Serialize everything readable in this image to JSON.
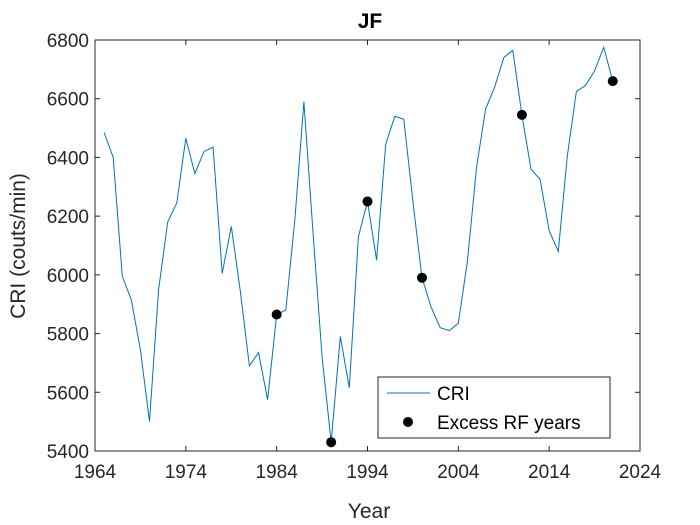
{
  "colors": {
    "line": "#0072BD",
    "marker": "#000000",
    "axis": "#262626",
    "background": "#ffffff"
  },
  "chart_data": {
    "type": "line",
    "title": "JF",
    "xlabel": "Year",
    "ylabel": "CRI (couts/min)",
    "xlim": [
      1964,
      2024
    ],
    "ylim": [
      5400,
      6800
    ],
    "xticks": [
      1964,
      1974,
      1984,
      1994,
      2004,
      2014,
      2024
    ],
    "yticks": [
      5400,
      5600,
      5800,
      6000,
      6200,
      6400,
      6600,
      6800
    ],
    "grid": false,
    "legend_position": "bottom-right",
    "series": [
      {
        "name": "CRI",
        "style": "line",
        "x": [
          1965,
          1966,
          1967,
          1968,
          1969,
          1970,
          1971,
          1972,
          1973,
          1974,
          1975,
          1976,
          1977,
          1978,
          1979,
          1980,
          1981,
          1982,
          1983,
          1984,
          1985,
          1986,
          1987,
          1988,
          1989,
          1990,
          1991,
          1992,
          1993,
          1994,
          1995,
          1996,
          1997,
          1998,
          1999,
          2000,
          2001,
          2002,
          2003,
          2004,
          2005,
          2006,
          2007,
          2008,
          2009,
          2010,
          2011,
          2012,
          2013,
          2014,
          2015,
          2016,
          2017,
          2018,
          2019,
          2020,
          2021
        ],
        "values": [
          6485,
          6400,
          5995,
          5915,
          5745,
          5500,
          5950,
          6180,
          6245,
          6465,
          6345,
          6420,
          6435,
          6005,
          6165,
          5945,
          5690,
          5735,
          5575,
          5865,
          5880,
          6185,
          6590,
          6145,
          5720,
          5430,
          5790,
          5615,
          6130,
          6250,
          6050,
          6445,
          6540,
          6530,
          6250,
          5990,
          5890,
          5820,
          5810,
          5835,
          6045,
          6365,
          6565,
          6640,
          6740,
          6765,
          6545,
          6360,
          6325,
          6150,
          6080,
          6405,
          6625,
          6645,
          6695,
          6775,
          6660
        ]
      },
      {
        "name": "Excess RF years",
        "style": "marker",
        "x": [
          1984,
          1990,
          1994,
          2000,
          2011,
          2021
        ],
        "values": [
          5865,
          5430,
          6250,
          5990,
          6545,
          6660
        ]
      }
    ]
  }
}
